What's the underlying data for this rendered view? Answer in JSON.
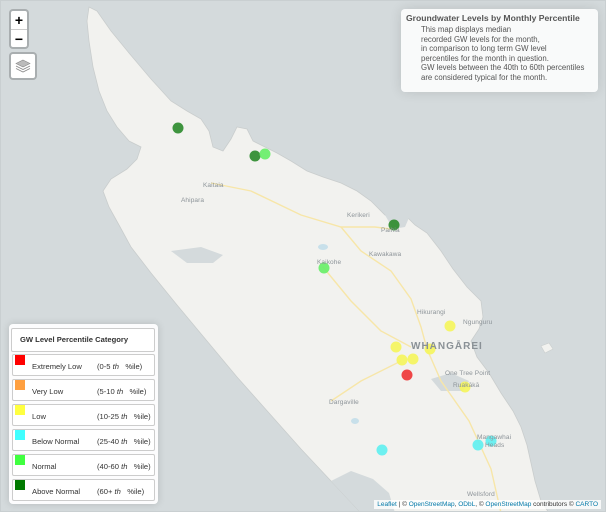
{
  "controls": {
    "zoom_in": "+",
    "zoom_out": "−"
  },
  "info_box": {
    "title": "Groundwater Levels by Monthly Percentile",
    "lines": [
      "This map displays median",
      "recorded GW levels for the month,",
      "in comparison to long term GW level",
      "percentiles for the month in question.",
      "GW levels between the 40th to 60th percentiles",
      "are considered typical for the month."
    ]
  },
  "legend": {
    "title": "GW Level Percentile Category",
    "items": [
      {
        "label": "Extremely Low",
        "range_start": "(0-5",
        "range_sup": "th",
        "range_end": "%ile)",
        "color": "#ff0000"
      },
      {
        "label": "Very Low",
        "range_start": "(5-10",
        "range_sup": "th",
        "range_end": "%ile)",
        "color": "#ffa040"
      },
      {
        "label": "Low",
        "range_start": "(10-25",
        "range_sup": "th",
        "range_end": "%ile)",
        "color": "#ffff40"
      },
      {
        "label": "Below Normal",
        "range_start": "(25-40",
        "range_sup": "th",
        "range_end": "%ile)",
        "color": "#40ffff"
      },
      {
        "label": "Normal",
        "range_start": "(40-60",
        "range_sup": "th",
        "range_end": "%ile)",
        "color": "#40ff40"
      },
      {
        "label": "Above Normal",
        "range_start": "(60+",
        "range_sup": "th",
        "range_end": "%ile)",
        "color": "#007a00"
      }
    ]
  },
  "places": {
    "kaitaia": "Kaitaia",
    "ahipara": "Ahipara",
    "kerikeri": "Kerikeri",
    "paihia": "Paihia",
    "kawakawa": "Kawakawa",
    "kaikohe": "Kaikohe",
    "hikurangi": "Hikurangi",
    "ngunguru": "Ngunguru",
    "whangarei": "WHANGĀREI",
    "one_tree_point": "One Tree Point",
    "ruakaka": "Ruakākā",
    "dargaville": "Dargaville",
    "mangawhai": "Mangawhai",
    "mangawhai_heads": "Heads",
    "wellsford": "Wellsford"
  },
  "sites": [
    {
      "category": "Above Normal",
      "color": "#2a8a2a"
    },
    {
      "category": "Above Normal",
      "color": "#2a8a2a"
    },
    {
      "category": "Normal",
      "color": "#66ee66"
    },
    {
      "category": "Above Normal",
      "color": "#2a8a2a"
    },
    {
      "category": "Normal",
      "color": "#66ee66"
    },
    {
      "category": "Low",
      "color": "#f5f55a"
    },
    {
      "category": "Low",
      "color": "#f5f55a"
    },
    {
      "category": "Low",
      "color": "#f5f55a"
    },
    {
      "category": "Low",
      "color": "#f5f55a"
    },
    {
      "category": "Low",
      "color": "#f5f55a"
    },
    {
      "category": "Extremely Low",
      "color": "#ee3333"
    },
    {
      "category": "Low",
      "color": "#f5f55a"
    },
    {
      "category": "Below Normal",
      "color": "#5ef0f0"
    },
    {
      "category": "Below Normal",
      "color": "#5ef0f0"
    },
    {
      "category": "Below Normal",
      "color": "#5ef0f0"
    }
  ],
  "attribution": {
    "leaflet": "Leaflet",
    "sep1": " | © ",
    "osm": "OpenStreetMap",
    "sep2": ", ",
    "odbl": "ODbL",
    "sep3": ", © ",
    "osm2": "OpenStreetMap",
    "contrib": " contributors © ",
    "carto": "CARTO"
  }
}
